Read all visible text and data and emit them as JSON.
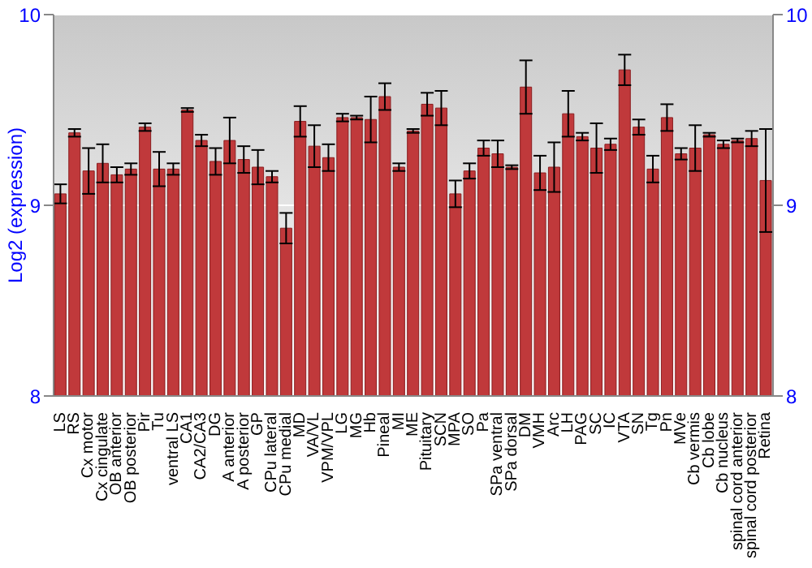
{
  "chart_data": {
    "type": "bar",
    "ylabel": "Log2 (expression)",
    "categories": [
      "LS",
      "RS",
      "Cx motor",
      "Cx cingulate",
      "OB anterior",
      "OB posterior",
      "Pir",
      "Tu",
      "ventral LS",
      "CA1",
      "CA2/CA3",
      "DG",
      "A anterior",
      "A posterior",
      "GP",
      "CPu lateral",
      "CPu medial",
      "MD",
      "VA/VL",
      "VPM/VPL",
      "LG",
      "MG",
      "Hb",
      "Pineal",
      "MI",
      "ME",
      "Pituitary",
      "SCN",
      "MPA",
      "SO",
      "Pa",
      "SPa ventral",
      "SPa dorsal",
      "DM",
      "VMH",
      "Arc",
      "LH",
      "PAG",
      "SC",
      "IC",
      "VTA",
      "SN",
      "Tg",
      "Pn",
      "MVe",
      "Cb vermis",
      "Cb lobe",
      "Cb nucleus",
      "spinal cord anterior",
      "spinal cord posterior",
      "Retina"
    ],
    "values": [
      9.06,
      9.38,
      9.18,
      9.22,
      9.16,
      9.19,
      9.41,
      9.19,
      9.19,
      9.5,
      9.34,
      9.23,
      9.34,
      9.24,
      9.2,
      9.15,
      8.88,
      9.44,
      9.31,
      9.25,
      9.46,
      9.46,
      9.45,
      9.57,
      9.2,
      9.39,
      9.53,
      9.51,
      9.06,
      9.18,
      9.3,
      9.27,
      9.2,
      9.62,
      9.17,
      9.2,
      9.48,
      9.36,
      9.3,
      9.32,
      9.71,
      9.41,
      9.19,
      9.46,
      9.27,
      9.3,
      9.37,
      9.32,
      9.34,
      9.35,
      9.13
    ],
    "errors": [
      0.05,
      0.02,
      0.12,
      0.1,
      0.04,
      0.03,
      0.02,
      0.09,
      0.03,
      0.01,
      0.03,
      0.07,
      0.12,
      0.07,
      0.09,
      0.03,
      0.08,
      0.08,
      0.11,
      0.07,
      0.02,
      0.01,
      0.12,
      0.07,
      0.02,
      0.01,
      0.06,
      0.09,
      0.07,
      0.04,
      0.04,
      0.07,
      0.01,
      0.14,
      0.09,
      0.13,
      0.12,
      0.02,
      0.13,
      0.03,
      0.08,
      0.04,
      0.07,
      0.07,
      0.03,
      0.12,
      0.01,
      0.02,
      0.01,
      0.04,
      0.27
    ],
    "color": "#c0393b",
    "ylim": [
      8,
      10
    ],
    "yticks": [
      8,
      9,
      10
    ],
    "y2lim": [
      8,
      10
    ],
    "y2ticks": [
      8,
      9,
      10
    ],
    "grid": "y"
  }
}
